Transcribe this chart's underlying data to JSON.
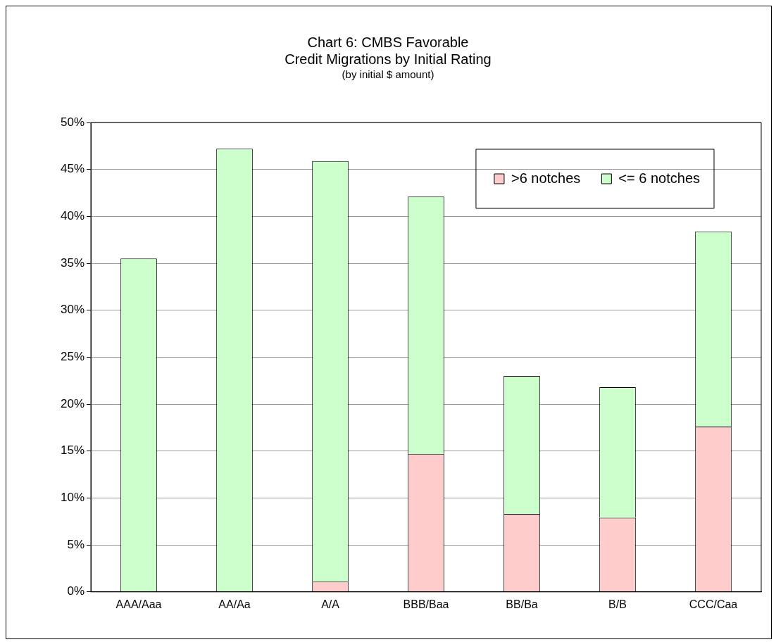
{
  "chart_data": {
    "type": "bar",
    "title": "Chart 6: CMBS Favorable",
    "subtitle": "Credit Migrations by Initial Rating",
    "annotations": [
      "(by initial $ amount)"
    ],
    "categories": [
      "AAA/Aaa",
      "AA/Aa",
      "A/A",
      "BBB/Baa",
      "BB/Ba",
      "B/B",
      "CCC/Caa"
    ],
    "series": [
      {
        "name": ">6 notches",
        "color": "#ffcccc",
        "values": [
          0,
          0,
          1.1,
          14.7,
          8.3,
          7.9,
          17.6
        ]
      },
      {
        "name": "<= 6 notches",
        "color": "#ccffcc",
        "values": [
          35.5,
          47.2,
          44.8,
          27.4,
          14.7,
          13.9,
          20.8
        ]
      }
    ],
    "stacked": true,
    "ylim": [
      0,
      50
    ],
    "yticks": [
      {
        "value": 0,
        "label": "0%"
      },
      {
        "value": 5,
        "label": "5%"
      },
      {
        "value": 10,
        "label": "10%"
      },
      {
        "value": 15,
        "label": "15%"
      },
      {
        "value": 20,
        "label": "20%"
      },
      {
        "value": 25,
        "label": "25%"
      },
      {
        "value": 30,
        "label": "30%"
      },
      {
        "value": 35,
        "label": "35%"
      },
      {
        "value": 40,
        "label": "40%"
      },
      {
        "value": 45,
        "label": "45%"
      },
      {
        "value": 50,
        "label": "50%"
      }
    ],
    "grid": "y",
    "legend": "top right"
  }
}
